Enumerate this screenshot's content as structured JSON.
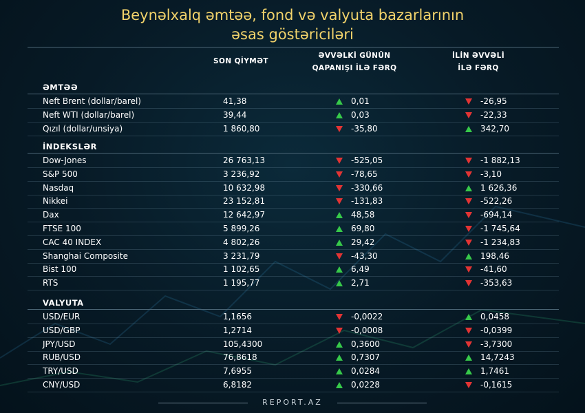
{
  "title_line1": "Beynəlxalq əmtəə, fond və valyuta  bazarlarının",
  "title_line2": "əsas göstəriciləri",
  "columns": {
    "last_price": "SON QİYMƏT",
    "prev_day_line1": "ƏVVƏLKİ GÜNÜN",
    "prev_day_line2": "QAPANIŞI İLƏ FƏRQ",
    "ytd_line1": "İLİN ƏVVƏLİ",
    "ytd_line2": "İLƏ FƏRQ"
  },
  "sections": [
    {
      "label": "ƏMTƏƏ",
      "rows": [
        {
          "name": "Neft Brent (dollar/barel)",
          "value": "41,38",
          "day": "0,01",
          "day_dir": "up",
          "ytd": "-26,95",
          "ytd_dir": "down"
        },
        {
          "name": "Neft WTI (dollar/barel)",
          "value": "39,44",
          "day": "0,03",
          "day_dir": "up",
          "ytd": "-22,33",
          "ytd_dir": "down"
        },
        {
          "name": "Qızıl (dollar/unsiya)",
          "value": "1 860,80",
          "day": "-35,80",
          "day_dir": "down",
          "ytd": "342,70",
          "ytd_dir": "up"
        }
      ]
    },
    {
      "label": "İNDEKSLƏR",
      "rows": [
        {
          "name": "Dow-Jones",
          "value": "26 763,13",
          "day": "-525,05",
          "day_dir": "down",
          "ytd": "-1 882,13",
          "ytd_dir": "down"
        },
        {
          "name": "S&P 500",
          "value": "3 236,92",
          "day": "-78,65",
          "day_dir": "down",
          "ytd": "-3,10",
          "ytd_dir": "down"
        },
        {
          "name": "Nasdaq",
          "value": "10 632,98",
          "day": "-330,66",
          "day_dir": "down",
          "ytd": "1 626,36",
          "ytd_dir": "up"
        },
        {
          "name": "Nikkei",
          "value": "23 152,81",
          "day": "-131,83",
          "day_dir": "down",
          "ytd": "-522,26",
          "ytd_dir": "down"
        },
        {
          "name": "Dax",
          "value": "12 642,97",
          "day": "48,58",
          "day_dir": "up",
          "ytd": "-694,14",
          "ytd_dir": "down"
        },
        {
          "name": "FTSE 100",
          "value": "5 899,26",
          "day": "69,80",
          "day_dir": "up",
          "ytd": "-1 745,64",
          "ytd_dir": "down"
        },
        {
          "name": "CAC 40 INDEX",
          "value": "4 802,26",
          "day": "29,42",
          "day_dir": "up",
          "ytd": "-1 234,83",
          "ytd_dir": "down"
        },
        {
          "name": "Shanghai Composite",
          "value": "3 231,79",
          "day": "-43,30",
          "day_dir": "down",
          "ytd": "198,46",
          "ytd_dir": "up"
        },
        {
          "name": "Bist 100",
          "value": "1 102,65",
          "day": "6,49",
          "day_dir": "up",
          "ytd": "-41,60",
          "ytd_dir": "down"
        },
        {
          "name": "RTS",
          "value": "1 195,77",
          "day": "2,71",
          "day_dir": "up",
          "ytd": "-353,63",
          "ytd_dir": "down"
        }
      ]
    },
    {
      "label": "VALYUTA",
      "rows": [
        {
          "name": "USD/EUR",
          "value": "1,1656",
          "day": "-0,0022",
          "day_dir": "down",
          "ytd": "0,0458",
          "ytd_dir": "up"
        },
        {
          "name": "USD/GBP",
          "value": "1,2714",
          "day": "-0,0008",
          "day_dir": "down",
          "ytd": "-0,0399",
          "ytd_dir": "down"
        },
        {
          "name": "JPY/USD",
          "value": "105,4300",
          "day": "0,3600",
          "day_dir": "up",
          "ytd": "-3,7300",
          "ytd_dir": "down"
        },
        {
          "name": "RUB/USD",
          "value": "76,8618",
          "day": "0,7307",
          "day_dir": "up",
          "ytd": "14,7243",
          "ytd_dir": "up"
        },
        {
          "name": "TRY/USD",
          "value": "7,6955",
          "day": "0,0284",
          "day_dir": "up",
          "ytd": "1,7461",
          "ytd_dir": "up"
        },
        {
          "name": "CNY/USD",
          "value": "6,8182",
          "day": "0,0228",
          "day_dir": "up",
          "ytd": "-0,1615",
          "ytd_dir": "down"
        }
      ]
    }
  ],
  "footer": "REPORT.AZ",
  "colors": {
    "title": "#f2d36b",
    "up": "#37c94a",
    "down": "#e33434"
  }
}
